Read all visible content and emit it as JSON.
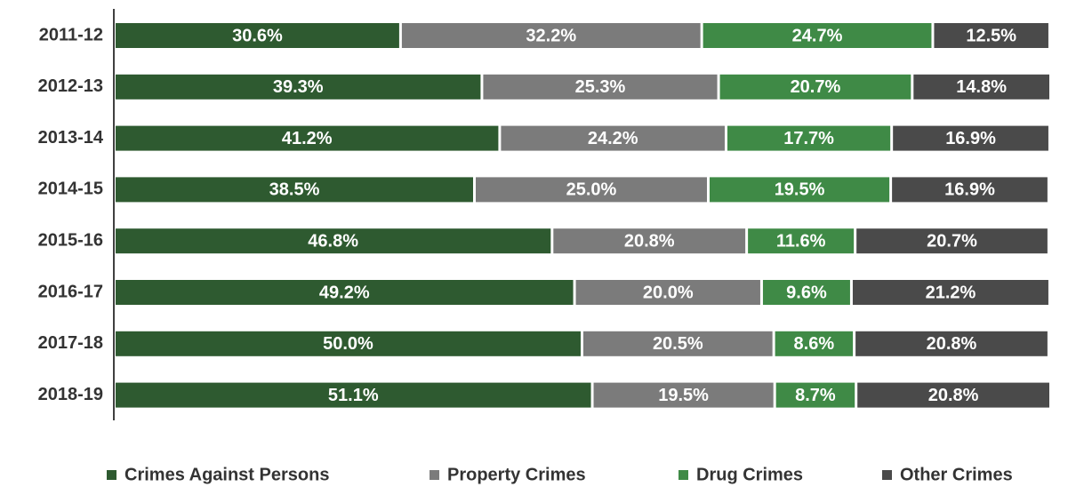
{
  "chart_data": {
    "type": "stacked-bar-horizontal",
    "categories": [
      "2011-12",
      "2012-13",
      "2013-14",
      "2014-15",
      "2015-16",
      "2016-17",
      "2017-18",
      "2018-19"
    ],
    "series": [
      {
        "name": "Crimes Against Persons",
        "color": "#2e5a30",
        "values": [
          30.6,
          39.3,
          41.2,
          38.5,
          46.8,
          49.2,
          50.0,
          51.1
        ],
        "value_labels": [
          "30.6%",
          "39.3%",
          "41.2%",
          "38.5%",
          "46.8%",
          "49.2%",
          "50.0%",
          "51.1%"
        ]
      },
      {
        "name": "Property Crimes",
        "color": "#7b7b7b",
        "values": [
          32.2,
          25.3,
          24.2,
          25.0,
          20.8,
          20.0,
          20.5,
          19.5
        ],
        "value_labels": [
          "32.2%",
          "25.3%",
          "24.2%",
          "25.0%",
          "20.8%",
          "20.0%",
          "20.5%",
          "19.5%"
        ]
      },
      {
        "name": "Drug Crimes",
        "color": "#3f8a46",
        "values": [
          24.7,
          20.7,
          17.7,
          19.5,
          11.6,
          9.6,
          8.6,
          8.7
        ],
        "value_labels": [
          "24.7%",
          "20.7%",
          "17.7%",
          "19.5%",
          "11.6%",
          "9.6%",
          "8.6%",
          "8.7%"
        ]
      },
      {
        "name": "Other Crimes",
        "color": "#4a4a4a",
        "values": [
          12.5,
          14.8,
          16.9,
          16.9,
          20.7,
          21.2,
          20.8,
          20.8
        ],
        "value_labels": [
          "12.5%",
          "14.8%",
          "16.9%",
          "16.9%",
          "20.7%",
          "21.2%",
          "20.8%",
          "20.8%"
        ]
      }
    ]
  }
}
